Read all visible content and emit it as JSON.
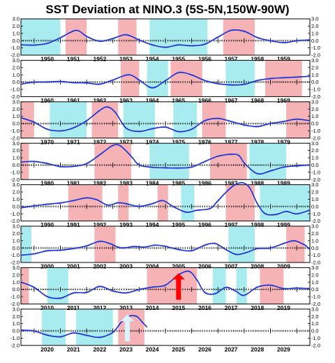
{
  "title": "SST Deviation at NINO.3 (5S-5N,150W-90W)",
  "colors": {
    "warm_shade": "#f5b3b6",
    "cold_shade": "#a9ecf0",
    "smooth_line": "#1a2fd6",
    "raw_line": "#7f8ce0",
    "arrow": "#ff0000",
    "arrow_light": "#dff3ff"
  },
  "chart_data": {
    "type": "line",
    "title": "SST Deviation at NINO.3 (5S-5N,150W-90W)",
    "ylim": [
      -2.0,
      3.0
    ],
    "yticks": [
      -2.0,
      -1.0,
      0.0,
      1.0,
      2.0,
      3.0
    ],
    "ytick_labels": [
      "-2.0",
      "-1.0",
      "0.0",
      "1.0",
      "2.0",
      "3.0"
    ],
    "grid": false,
    "panels": [
      {
        "start": 1949.5,
        "end": 1960.5,
        "years": [
          "1950",
          "1951",
          "1952",
          "1953",
          "1954",
          "1955",
          "1956",
          "1957",
          "1958",
          "1959"
        ],
        "warm": [
          [
            1951.2,
            1952.0
          ],
          [
            1953.2,
            1953.9
          ],
          [
            1957.2,
            1958.4
          ]
        ],
        "cold": [
          [
            1949.5,
            1951.0
          ],
          [
            1954.4,
            1956.6
          ]
        ],
        "series": [
          [
            1949.5,
            -0.6
          ],
          [
            1950.0,
            -0.6
          ],
          [
            1950.5,
            -0.4
          ],
          [
            1951.0,
            0.4
          ],
          [
            1951.6,
            1.4
          ],
          [
            1952.0,
            0.6
          ],
          [
            1952.5,
            -0.1
          ],
          [
            1953.0,
            0.3
          ],
          [
            1953.5,
            0.8
          ],
          [
            1954.0,
            0.1
          ],
          [
            1954.5,
            -0.6
          ],
          [
            1955.0,
            -0.9
          ],
          [
            1955.5,
            -0.6
          ],
          [
            1956.0,
            -0.7
          ],
          [
            1956.5,
            -0.5
          ],
          [
            1957.0,
            0.5
          ],
          [
            1957.5,
            1.4
          ],
          [
            1958.0,
            1.3
          ],
          [
            1958.5,
            0.4
          ],
          [
            1959.0,
            0.0
          ],
          [
            1959.5,
            -0.3
          ],
          [
            1960.0,
            0.0
          ],
          [
            1960.5,
            0.1
          ]
        ]
      },
      {
        "start": 1959.5,
        "end": 1970.5,
        "years": [
          "1960",
          "1961",
          "1962",
          "1963",
          "1964",
          "1965",
          "1966",
          "1967",
          "1968",
          "1969"
        ],
        "warm": [
          [
            1963.3,
            1964.0
          ],
          [
            1965.2,
            1966.4
          ],
          [
            1968.8,
            1970.2
          ]
        ],
        "cold": [
          [
            1964.3,
            1965.1
          ],
          [
            1967.3,
            1968.4
          ]
        ],
        "series": [
          [
            1959.5,
            -0.3
          ],
          [
            1960.0,
            0.0
          ],
          [
            1960.5,
            0.0
          ],
          [
            1961.0,
            0.1
          ],
          [
            1961.5,
            -0.1
          ],
          [
            1962.0,
            -0.1
          ],
          [
            1962.5,
            -0.3
          ],
          [
            1963.0,
            0.3
          ],
          [
            1963.6,
            1.0
          ],
          [
            1964.0,
            0.3
          ],
          [
            1964.5,
            -0.8
          ],
          [
            1965.0,
            0.2
          ],
          [
            1965.5,
            1.3
          ],
          [
            1966.0,
            1.0
          ],
          [
            1966.5,
            0.2
          ],
          [
            1967.0,
            -0.2
          ],
          [
            1967.5,
            -0.4
          ],
          [
            1968.0,
            -0.3
          ],
          [
            1968.5,
            0.2
          ],
          [
            1969.0,
            0.5
          ],
          [
            1969.5,
            0.6
          ],
          [
            1970.0,
            0.7
          ],
          [
            1970.5,
            0.8
          ]
        ]
      },
      {
        "start": 1969.5,
        "end": 1980.5,
        "years": [
          "1970",
          "1971",
          "1972",
          "1973",
          "1974",
          "1975",
          "1976",
          "1977",
          "1978",
          "1979"
        ],
        "warm": [
          [
            1969.5,
            1970.0
          ],
          [
            1972.2,
            1973.2
          ],
          [
            1976.4,
            1977.3
          ],
          [
            1979.6,
            1980.5
          ]
        ],
        "cold": [
          [
            1970.6,
            1972.0
          ],
          [
            1973.4,
            1974.6
          ],
          [
            1975.3,
            1976.2
          ]
        ],
        "series": [
          [
            1969.5,
            0.8
          ],
          [
            1970.0,
            0.2
          ],
          [
            1970.5,
            -0.8
          ],
          [
            1971.0,
            -1.0
          ],
          [
            1971.5,
            -0.6
          ],
          [
            1972.0,
            0.4
          ],
          [
            1972.5,
            1.8
          ],
          [
            1972.8,
            2.3
          ],
          [
            1973.1,
            1.5
          ],
          [
            1973.5,
            -0.6
          ],
          [
            1974.0,
            -1.1
          ],
          [
            1974.5,
            -0.7
          ],
          [
            1975.0,
            -0.5
          ],
          [
            1975.5,
            -1.1
          ],
          [
            1976.0,
            -0.8
          ],
          [
            1976.5,
            0.4
          ],
          [
            1977.0,
            0.7
          ],
          [
            1977.5,
            0.3
          ],
          [
            1978.0,
            -0.2
          ],
          [
            1978.5,
            -0.4
          ],
          [
            1979.0,
            0.0
          ],
          [
            1979.5,
            0.3
          ],
          [
            1980.0,
            0.6
          ],
          [
            1980.5,
            0.4
          ]
        ]
      },
      {
        "start": 1979.5,
        "end": 1990.5,
        "years": [
          "1980",
          "1981",
          "1982",
          "1983",
          "1984",
          "1985",
          "1986",
          "1987",
          "1988",
          "1989"
        ],
        "warm": [
          [
            1979.5,
            1979.8
          ],
          [
            1982.3,
            1983.7
          ],
          [
            1986.7,
            1988.1
          ]
        ],
        "cold": [
          [
            1984.4,
            1985.9
          ],
          [
            1988.2,
            1989.6
          ]
        ],
        "series": [
          [
            1979.5,
            0.4
          ],
          [
            1980.0,
            0.5
          ],
          [
            1980.5,
            0.2
          ],
          [
            1981.0,
            -0.2
          ],
          [
            1981.5,
            -0.2
          ],
          [
            1982.0,
            0.2
          ],
          [
            1982.5,
            1.4
          ],
          [
            1983.0,
            2.7
          ],
          [
            1983.3,
            2.6
          ],
          [
            1983.7,
            1.2
          ],
          [
            1984.0,
            0.0
          ],
          [
            1984.5,
            -0.3
          ],
          [
            1985.0,
            -0.4
          ],
          [
            1985.5,
            -0.4
          ],
          [
            1986.0,
            -0.3
          ],
          [
            1986.5,
            0.5
          ],
          [
            1987.0,
            1.2
          ],
          [
            1987.5,
            1.5
          ],
          [
            1987.8,
            1.3
          ],
          [
            1988.0,
            0.3
          ],
          [
            1988.5,
            -1.2
          ],
          [
            1989.0,
            -0.8
          ],
          [
            1989.5,
            -0.3
          ],
          [
            1990.0,
            -0.1
          ],
          [
            1990.5,
            0.0
          ]
        ]
      },
      {
        "start": 1989.5,
        "end": 2000.5,
        "years": [
          "1990",
          "1991",
          "1992",
          "1993",
          "1994",
          "1995",
          "1996",
          "1997",
          "1998",
          "1999"
        ],
        "warm": [
          [
            1991.3,
            1992.6
          ],
          [
            1993.2,
            1993.6
          ],
          [
            1994.7,
            1995.1
          ],
          [
            1997.3,
            1998.4
          ]
        ],
        "cold": [
          [
            1995.6,
            1996.1
          ],
          [
            1998.6,
            2000.5
          ]
        ],
        "series": [
          [
            1989.5,
            -0.2
          ],
          [
            1990.0,
            0.1
          ],
          [
            1990.5,
            0.3
          ],
          [
            1991.0,
            0.5
          ],
          [
            1991.5,
            0.8
          ],
          [
            1992.0,
            1.2
          ],
          [
            1992.4,
            0.9
          ],
          [
            1992.8,
            0.2
          ],
          [
            1993.2,
            0.5
          ],
          [
            1993.5,
            0.4
          ],
          [
            1994.0,
            0.0
          ],
          [
            1994.5,
            0.4
          ],
          [
            1994.9,
            0.8
          ],
          [
            1995.3,
            0.0
          ],
          [
            1995.8,
            -0.8
          ],
          [
            1996.2,
            -0.5
          ],
          [
            1996.7,
            -0.3
          ],
          [
            1997.0,
            0.8
          ],
          [
            1997.5,
            2.6
          ],
          [
            1997.9,
            3.3
          ],
          [
            1998.2,
            2.6
          ],
          [
            1998.5,
            0.4
          ],
          [
            1998.8,
            -1.0
          ],
          [
            1999.2,
            -1.1
          ],
          [
            1999.6,
            -0.7
          ],
          [
            2000.0,
            -1.0
          ],
          [
            2000.5,
            -0.5
          ]
        ]
      },
      {
        "start": 1999.5,
        "end": 2010.5,
        "years": [
          "2000",
          "2001",
          "2002",
          "2003",
          "2004",
          "2005",
          "2006",
          "2007",
          "2008",
          "2009"
        ],
        "warm": [
          [
            2002.3,
            2003.1
          ],
          [
            2009.6,
            2010.3
          ]
        ],
        "cold": [
          [
            1999.5,
            1999.9
          ],
          [
            2007.4,
            2008.4
          ]
        ],
        "series": [
          [
            1999.5,
            -1.0
          ],
          [
            2000.0,
            -0.8
          ],
          [
            2000.5,
            -0.4
          ],
          [
            2001.0,
            -0.3
          ],
          [
            2001.5,
            -0.1
          ],
          [
            2002.0,
            0.3
          ],
          [
            2002.5,
            0.9
          ],
          [
            2002.9,
            0.6
          ],
          [
            2003.3,
            0.0
          ],
          [
            2003.8,
            0.2
          ],
          [
            2004.2,
            0.1
          ],
          [
            2004.6,
            0.4
          ],
          [
            2005.0,
            0.2
          ],
          [
            2005.5,
            -0.2
          ],
          [
            2006.0,
            -0.4
          ],
          [
            2006.5,
            0.4
          ],
          [
            2006.9,
            0.6
          ],
          [
            2007.3,
            -0.2
          ],
          [
            2007.7,
            -0.9
          ],
          [
            2008.1,
            -0.6
          ],
          [
            2008.5,
            -0.1
          ],
          [
            2009.0,
            0.0
          ],
          [
            2009.5,
            0.6
          ],
          [
            2009.9,
            1.0
          ],
          [
            2010.3,
            0.4
          ],
          [
            2010.5,
            -0.2
          ]
        ]
      },
      {
        "start": 2009.5,
        "end": 2020.5,
        "years": [
          "2010",
          "2011",
          "2012",
          "2013",
          "2014",
          "2015",
          "2016",
          "2017",
          "2018",
          "2019"
        ],
        "warm": [
          [
            2009.5,
            2009.8
          ],
          [
            2014.3,
            2016.2
          ],
          [
            2018.6,
            2019.5
          ]
        ],
        "cold": [
          [
            2010.5,
            2011.3
          ],
          [
            2016.8,
            2017.3
          ],
          [
            2017.7,
            2018.1
          ]
        ],
        "series": [
          [
            2009.5,
            1.0
          ],
          [
            2010.0,
            0.3
          ],
          [
            2010.5,
            -1.0
          ],
          [
            2011.0,
            -1.2
          ],
          [
            2011.5,
            -0.5
          ],
          [
            2012.0,
            -0.4
          ],
          [
            2012.5,
            0.4
          ],
          [
            2013.0,
            -0.2
          ],
          [
            2013.5,
            -0.5
          ],
          [
            2014.0,
            0.0
          ],
          [
            2014.5,
            0.3
          ],
          [
            2015.0,
            0.6
          ],
          [
            2015.5,
            2.0
          ],
          [
            2015.9,
            2.5
          ],
          [
            2016.2,
            1.3
          ],
          [
            2016.5,
            -0.4
          ],
          [
            2016.9,
            -0.6
          ],
          [
            2017.3,
            0.3
          ],
          [
            2017.7,
            -0.3
          ],
          [
            2018.0,
            -0.8
          ],
          [
            2018.5,
            0.3
          ],
          [
            2019.0,
            0.6
          ],
          [
            2019.5,
            0.1
          ],
          [
            2020.0,
            0.2
          ],
          [
            2020.5,
            0.1
          ]
        ]
      },
      {
        "start": 2019.5,
        "end": 2030.5,
        "years": [
          "2020",
          "2021",
          "2022",
          "2023",
          "2024",
          "2025",
          "2026",
          "2027",
          "2028",
          "2029"
        ],
        "warm": [
          [
            2023.2,
            2024.2
          ]
        ],
        "cold": [
          [
            2020.3,
            2021.2
          ],
          [
            2021.6,
            2023.0
          ]
        ],
        "series": [
          [
            2019.5,
            0.1
          ],
          [
            2020.0,
            0.0
          ],
          [
            2020.5,
            -0.6
          ],
          [
            2021.0,
            -0.8
          ],
          [
            2021.5,
            -0.3
          ],
          [
            2022.0,
            -0.6
          ],
          [
            2022.5,
            -0.9
          ],
          [
            2023.0,
            -0.2
          ],
          [
            2023.3,
            1.1
          ],
          [
            2023.6,
            2.0
          ],
          [
            2023.9,
            2.0
          ],
          [
            2024.1,
            1.3
          ],
          [
            2024.3,
            0.5
          ]
        ]
      }
    ],
    "annotations": [
      {
        "type": "arrow",
        "panel": 6,
        "x": 2015.5,
        "color": "red"
      },
      {
        "type": "arrow",
        "panel": 7,
        "x": 2023.55,
        "color": "light"
      }
    ]
  }
}
